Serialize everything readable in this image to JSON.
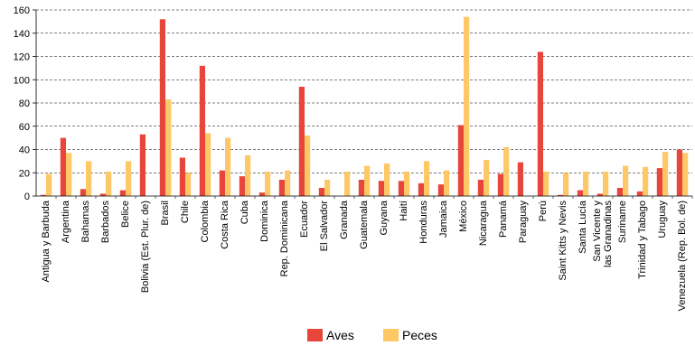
{
  "chart_data": {
    "type": "bar",
    "title": "",
    "xlabel": "",
    "ylabel": "",
    "ylim": [
      0,
      160
    ],
    "yticks": [
      0,
      20,
      40,
      60,
      80,
      100,
      120,
      140,
      160
    ],
    "grid": "horizontal dashed",
    "legend_position": "bottom",
    "categories": [
      "Antigua y Barbuda",
      "Argentina",
      "Bahamas",
      "Barbados",
      "Belice",
      "Bolivia (Est. Plur. de)",
      "Brasil",
      "Chile",
      "Colombia",
      "Costa Rica",
      "Cuba",
      "Dominica",
      "Rep. Dominicana",
      "Ecuador",
      "El Salvador",
      "Granada",
      "Guatemala",
      "Guyana",
      "Haití",
      "Honduras",
      "Jamaica",
      "México",
      "Nicaragua",
      "Panamá",
      "Paraguay",
      "Perú",
      "Saint Kitts y Nevis",
      "Santa Lucía",
      "San Vicente y las Granadinas",
      "Suriname",
      "Trinidad y Tabago",
      "Uruguay",
      "Venezuela (Rep. Bol. de)"
    ],
    "series": [
      {
        "name": "Aves",
        "color": "#e8463a",
        "values": [
          1,
          50,
          6,
          2,
          5,
          53,
          152,
          33,
          112,
          22,
          17,
          3,
          14,
          94,
          7,
          0,
          14,
          13,
          13,
          11,
          10,
          61,
          14,
          19,
          29,
          124,
          1,
          5,
          2,
          7,
          4,
          24,
          40
        ]
      },
      {
        "name": "Peces",
        "color": "#fdc865",
        "values": [
          19,
          37,
          30,
          21,
          30,
          0,
          83,
          20,
          54,
          50,
          35,
          21,
          22,
          52,
          14,
          21,
          26,
          28,
          21,
          30,
          22,
          154,
          31,
          42,
          0,
          21,
          20,
          21,
          21,
          26,
          25,
          38,
          37
        ]
      }
    ]
  }
}
